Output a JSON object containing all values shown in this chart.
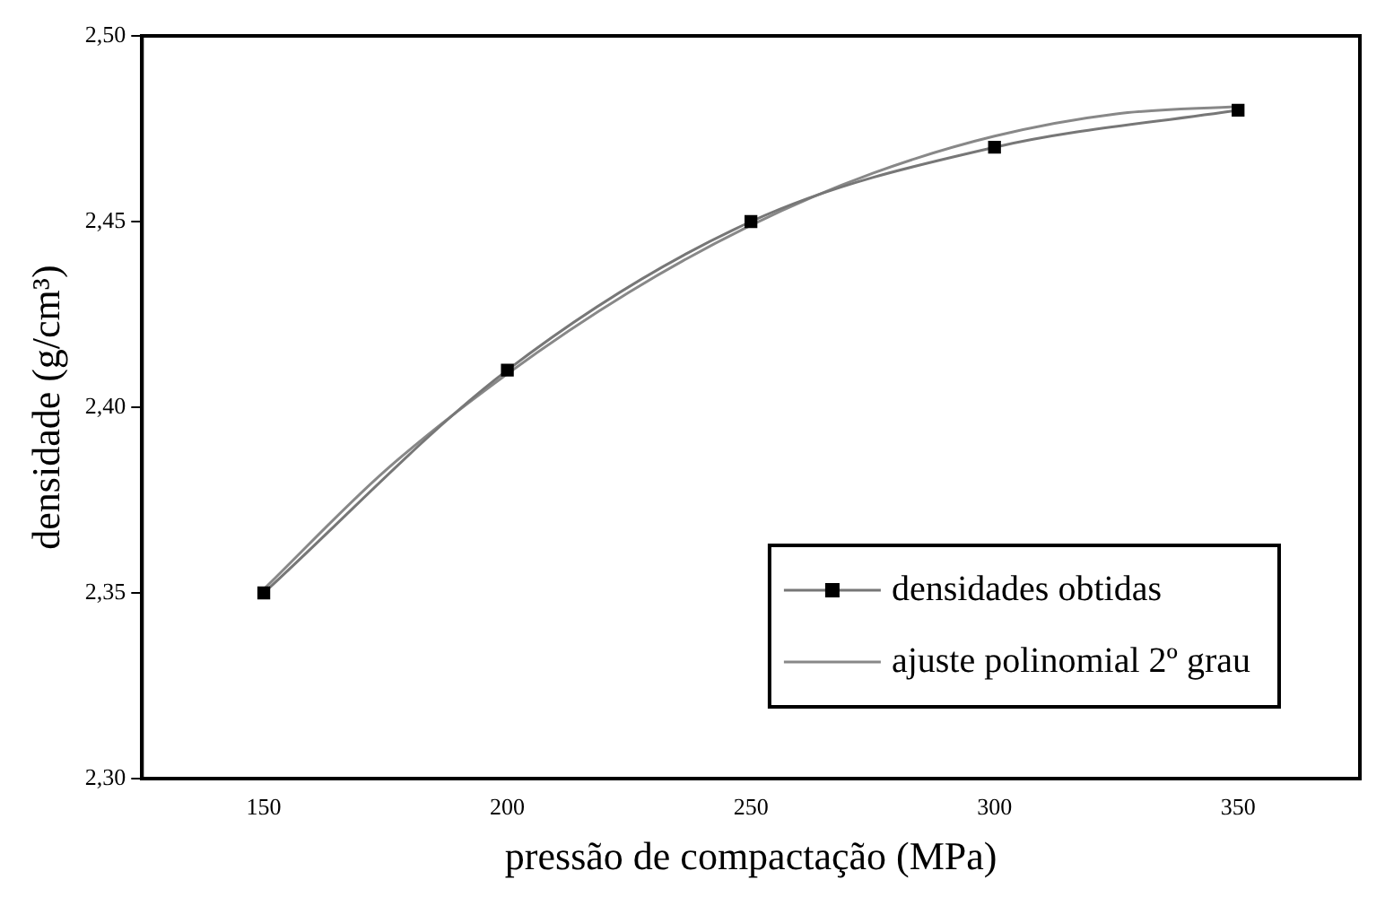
{
  "chart_data": {
    "type": "line",
    "xlabel": "pressão de compactação (MPa)",
    "ylabel": "densidade (g/cm³)",
    "xlim": [
      125,
      375
    ],
    "xticks": [
      150,
      200,
      250,
      300,
      350
    ],
    "ylim": [
      2.3,
      2.5
    ],
    "yticks": [
      {
        "value": 2.3,
        "label": "2,30"
      },
      {
        "value": 2.35,
        "label": "2,35"
      },
      {
        "value": 2.4,
        "label": "2,40"
      },
      {
        "value": 2.45,
        "label": "2,45"
      },
      {
        "value": 2.5,
        "label": "2,50"
      }
    ],
    "grid": false,
    "legend": "bottom right",
    "series": [
      {
        "name": "densidades obtidas",
        "marker": "square",
        "color": "#000000",
        "x": [
          150,
          200,
          250,
          300,
          350
        ],
        "values": [
          2.35,
          2.41,
          2.45,
          2.47,
          2.48
        ]
      },
      {
        "name": "ajuste polinomial 2º grau",
        "marker": "none",
        "color": "#888888",
        "x": [
          150,
          175,
          200,
          225,
          250,
          275,
          300,
          325,
          350
        ],
        "values": [
          2.351,
          2.383,
          2.409,
          2.431,
          2.449,
          2.463,
          2.473,
          2.479,
          2.481
        ]
      }
    ]
  }
}
